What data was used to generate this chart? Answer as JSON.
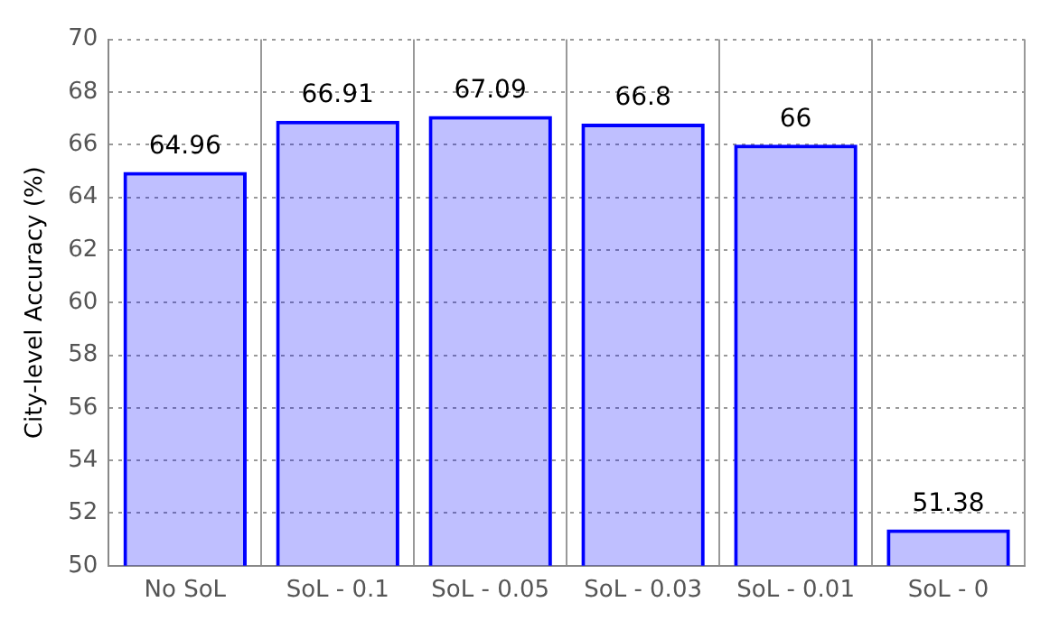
{
  "chart_data": {
    "type": "bar",
    "ylabel": "City-level Accuracy (%)",
    "categories": [
      "No SoL",
      "SoL - 0.1",
      "SoL - 0.05",
      "SoL - 0.03",
      "SoL - 0.01",
      "SoL - 0"
    ],
    "values": [
      64.96,
      66.91,
      67.09,
      66.8,
      66,
      51.38
    ],
    "value_labels": [
      "64.96",
      "66.91",
      "67.09",
      "66.8",
      "66",
      "51.38"
    ],
    "color": "#0000ff",
    "ylim": [
      50,
      70
    ],
    "yticks": [
      50,
      52,
      54,
      56,
      58,
      60,
      62,
      64,
      66,
      68,
      70
    ],
    "grid": true
  }
}
